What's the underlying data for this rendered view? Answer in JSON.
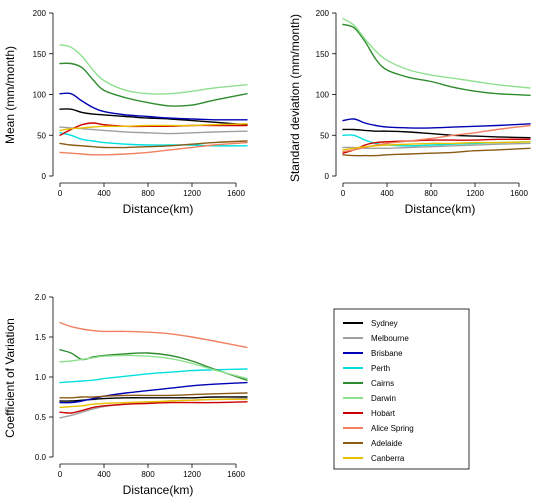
{
  "chart_data": [
    {
      "type": "line",
      "ylabel": "Mean (mm/month)",
      "xlabel": "Distance(km)",
      "xlim": [
        0,
        1700
      ],
      "ylim": [
        0,
        200
      ],
      "xticks": [
        "0",
        "400",
        "800",
        "1200",
        "1600"
      ],
      "yticks": [
        "0",
        "50",
        "100",
        "150",
        "200"
      ],
      "series": [
        {
          "name": "Sydney",
          "x": [
            0,
            100,
            200,
            300,
            400,
            600,
            800,
            1000,
            1200,
            1400,
            1700
          ],
          "y": [
            82,
            82,
            78,
            76,
            75,
            73,
            71,
            70,
            68,
            66,
            63
          ]
        },
        {
          "name": "Melbourne",
          "x": [
            0,
            100,
            200,
            300,
            400,
            600,
            800,
            1000,
            1200,
            1400,
            1700
          ],
          "y": [
            60,
            59,
            58,
            57,
            56,
            54,
            53,
            52,
            53,
            54,
            55
          ]
        },
        {
          "name": "Brisbane",
          "x": [
            0,
            100,
            200,
            300,
            400,
            600,
            800,
            1000,
            1200,
            1400,
            1700
          ],
          "y": [
            101,
            101,
            92,
            84,
            79,
            75,
            73,
            71,
            70,
            69,
            69
          ]
        },
        {
          "name": "Perth",
          "x": [
            0,
            100,
            200,
            300,
            400,
            600,
            800,
            1000,
            1200,
            1400,
            1700
          ],
          "y": [
            53,
            50,
            45,
            43,
            41,
            39,
            38,
            38,
            38,
            37,
            37
          ]
        },
        {
          "name": "Cairns",
          "x": [
            0,
            100,
            200,
            300,
            400,
            600,
            800,
            1000,
            1200,
            1400,
            1700
          ],
          "y": [
            138,
            138,
            133,
            118,
            105,
            96,
            90,
            86,
            87,
            93,
            101
          ]
        },
        {
          "name": "Darwin",
          "x": [
            0,
            100,
            200,
            300,
            400,
            600,
            800,
            1000,
            1200,
            1400,
            1700
          ],
          "y": [
            161,
            158,
            147,
            130,
            117,
            105,
            101,
            101,
            104,
            108,
            112
          ]
        },
        {
          "name": "Hobart",
          "x": [
            0,
            100,
            200,
            300,
            400,
            600,
            800,
            1000,
            1200,
            1400,
            1700
          ],
          "y": [
            50,
            57,
            63,
            65,
            63,
            61,
            61,
            61,
            62,
            62,
            62
          ]
        },
        {
          "name": "Alice Spring",
          "x": [
            0,
            100,
            200,
            300,
            400,
            600,
            800,
            1000,
            1200,
            1400,
            1700
          ],
          "y": [
            29,
            28,
            27,
            26,
            26,
            27,
            29,
            32,
            35,
            38,
            41
          ]
        },
        {
          "name": "Adelaide",
          "x": [
            0,
            100,
            200,
            300,
            400,
            600,
            800,
            1000,
            1200,
            1400,
            1700
          ],
          "y": [
            40,
            38,
            37,
            36,
            35,
            35,
            36,
            37,
            39,
            41,
            43
          ]
        },
        {
          "name": "Canberra",
          "x": [
            0,
            100,
            200,
            300,
            400,
            600,
            800,
            1000,
            1200,
            1400,
            1700
          ],
          "y": [
            56,
            58,
            59,
            60,
            61,
            61,
            62,
            62,
            62,
            63,
            64
          ]
        }
      ]
    },
    {
      "type": "line",
      "ylabel": "Standard deviation (mm/month)",
      "xlabel": "Distance(km)",
      "xlim": [
        0,
        1700
      ],
      "ylim": [
        0,
        200
      ],
      "xticks": [
        "0",
        "400",
        "800",
        "1200",
        "1600"
      ],
      "yticks": [
        "0",
        "50",
        "100",
        "150",
        "200"
      ],
      "series": [
        {
          "name": "Sydney",
          "x": [
            0,
            100,
            200,
            300,
            400,
            600,
            800,
            1000,
            1200,
            1400,
            1700
          ],
          "y": [
            57,
            57,
            56,
            55,
            55,
            54,
            52,
            50,
            49,
            48,
            47
          ]
        },
        {
          "name": "Melbourne",
          "x": [
            0,
            100,
            200,
            300,
            400,
            600,
            800,
            1000,
            1200,
            1400,
            1700
          ],
          "y": [
            35,
            35,
            34,
            34,
            34,
            35,
            36,
            37,
            38,
            39,
            40
          ]
        },
        {
          "name": "Brisbane",
          "x": [
            0,
            100,
            200,
            300,
            400,
            600,
            800,
            1000,
            1200,
            1400,
            1700
          ],
          "y": [
            68,
            70,
            65,
            62,
            60,
            59,
            59,
            60,
            61,
            62,
            64
          ]
        },
        {
          "name": "Perth",
          "x": [
            0,
            100,
            200,
            300,
            400,
            600,
            800,
            1000,
            1200,
            1400,
            1700
          ],
          "y": [
            50,
            50,
            44,
            40,
            38,
            37,
            38,
            39,
            40,
            41,
            42
          ]
        },
        {
          "name": "Cairns",
          "x": [
            0,
            100,
            200,
            300,
            400,
            600,
            800,
            1000,
            1200,
            1400,
            1700
          ],
          "y": [
            186,
            182,
            165,
            143,
            130,
            121,
            116,
            109,
            104,
            101,
            99
          ]
        },
        {
          "name": "Darwin",
          "x": [
            0,
            100,
            200,
            300,
            400,
            600,
            800,
            1000,
            1200,
            1400,
            1700
          ],
          "y": [
            193,
            185,
            168,
            153,
            142,
            130,
            124,
            120,
            116,
            112,
            108
          ]
        },
        {
          "name": "Hobart",
          "x": [
            0,
            100,
            200,
            300,
            400,
            600,
            800,
            1000,
            1200,
            1400,
            1700
          ],
          "y": [
            28,
            32,
            38,
            41,
            42,
            43,
            44,
            44,
            44,
            45,
            45
          ]
        },
        {
          "name": "Alice Spring",
          "x": [
            0,
            100,
            200,
            300,
            400,
            600,
            800,
            1000,
            1200,
            1400,
            1700
          ],
          "y": [
            30,
            32,
            35,
            38,
            40,
            43,
            46,
            50,
            53,
            57,
            62
          ]
        },
        {
          "name": "Adelaide",
          "x": [
            0,
            100,
            200,
            300,
            400,
            600,
            800,
            1000,
            1200,
            1400,
            1700
          ],
          "y": [
            26,
            25,
            25,
            25,
            26,
            27,
            28,
            29,
            31,
            32,
            34
          ]
        },
        {
          "name": "Canberra",
          "x": [
            0,
            100,
            200,
            300,
            400,
            600,
            800,
            1000,
            1200,
            1400,
            1700
          ],
          "y": [
            32,
            34,
            36,
            37,
            38,
            39,
            40,
            40,
            41,
            41,
            42
          ]
        }
      ]
    },
    {
      "type": "line",
      "ylabel": "Coefficient of Variation",
      "xlabel": "Distance(km)",
      "xlim": [
        0,
        1700
      ],
      "ylim": [
        0,
        2.0
      ],
      "xticks": [
        "0",
        "400",
        "800",
        "1200",
        "1600"
      ],
      "yticks": [
        "0.0",
        "0.5",
        "1.0",
        "1.5",
        "2.0"
      ],
      "series": [
        {
          "name": "Sydney",
          "x": [
            0,
            100,
            200,
            300,
            400,
            600,
            800,
            1000,
            1200,
            1400,
            1700
          ],
          "y": [
            0.7,
            0.7,
            0.71,
            0.72,
            0.73,
            0.74,
            0.74,
            0.74,
            0.74,
            0.75,
            0.75
          ]
        },
        {
          "name": "Melbourne",
          "x": [
            0,
            100,
            200,
            300,
            400,
            600,
            800,
            1000,
            1200,
            1400,
            1700
          ],
          "y": [
            0.49,
            0.52,
            0.56,
            0.6,
            0.63,
            0.66,
            0.68,
            0.7,
            0.71,
            0.72,
            0.73
          ]
        },
        {
          "name": "Brisbane",
          "x": [
            0,
            100,
            200,
            300,
            400,
            600,
            800,
            1000,
            1200,
            1400,
            1700
          ],
          "y": [
            0.68,
            0.68,
            0.7,
            0.73,
            0.76,
            0.8,
            0.83,
            0.86,
            0.89,
            0.91,
            0.93
          ]
        },
        {
          "name": "Perth",
          "x": [
            0,
            100,
            200,
            300,
            400,
            600,
            800,
            1000,
            1200,
            1400,
            1700
          ],
          "y": [
            0.93,
            0.94,
            0.95,
            0.96,
            0.98,
            1.01,
            1.04,
            1.06,
            1.08,
            1.09,
            1.1
          ]
        },
        {
          "name": "Cairns",
          "x": [
            0,
            100,
            200,
            300,
            400,
            600,
            800,
            1000,
            1200,
            1400,
            1700
          ],
          "y": [
            1.34,
            1.3,
            1.22,
            1.25,
            1.27,
            1.29,
            1.3,
            1.27,
            1.2,
            1.1,
            0.96
          ]
        },
        {
          "name": "Darwin",
          "x": [
            0,
            100,
            200,
            300,
            400,
            600,
            800,
            1000,
            1200,
            1400,
            1700
          ],
          "y": [
            1.19,
            1.2,
            1.22,
            1.24,
            1.26,
            1.27,
            1.26,
            1.23,
            1.17,
            1.09,
            0.98
          ]
        },
        {
          "name": "Hobart",
          "x": [
            0,
            100,
            200,
            300,
            400,
            600,
            800,
            1000,
            1200,
            1400,
            1700
          ],
          "y": [
            0.56,
            0.55,
            0.58,
            0.62,
            0.64,
            0.66,
            0.67,
            0.68,
            0.68,
            0.68,
            0.69
          ]
        },
        {
          "name": "Alice Spring",
          "x": [
            0,
            100,
            200,
            300,
            400,
            600,
            800,
            1000,
            1200,
            1400,
            1700
          ],
          "y": [
            1.68,
            1.63,
            1.6,
            1.58,
            1.57,
            1.57,
            1.56,
            1.54,
            1.5,
            1.45,
            1.37
          ]
        },
        {
          "name": "Adelaide",
          "x": [
            0,
            100,
            200,
            300,
            400,
            600,
            800,
            1000,
            1200,
            1400,
            1700
          ],
          "y": [
            0.74,
            0.74,
            0.75,
            0.75,
            0.76,
            0.77,
            0.77,
            0.77,
            0.78,
            0.79,
            0.8
          ]
        },
        {
          "name": "Canberra",
          "x": [
            0,
            100,
            200,
            300,
            400,
            600,
            800,
            1000,
            1200,
            1400,
            1700
          ],
          "y": [
            0.62,
            0.63,
            0.64,
            0.66,
            0.67,
            0.68,
            0.69,
            0.7,
            0.71,
            0.72,
            0.72
          ]
        }
      ]
    }
  ],
  "legend": {
    "items": [
      {
        "label": "Sydney",
        "color": "#000000"
      },
      {
        "label": "Melbourne",
        "color": "#a0a0a0"
      },
      {
        "label": "Brisbane",
        "color": "#0000b4"
      },
      {
        "label": "Perth",
        "color": "#00e0e0"
      },
      {
        "label": "Cairns",
        "color": "#2e8b2e"
      },
      {
        "label": "Darwin",
        "color": "#90e090"
      },
      {
        "label": "Hobart",
        "color": "#cc0000"
      },
      {
        "label": "Alice Spring",
        "color": "#f08060"
      },
      {
        "label": "Adelaide",
        "color": "#8b5a14"
      },
      {
        "label": "Canberra",
        "color": "#e8c000"
      }
    ]
  }
}
